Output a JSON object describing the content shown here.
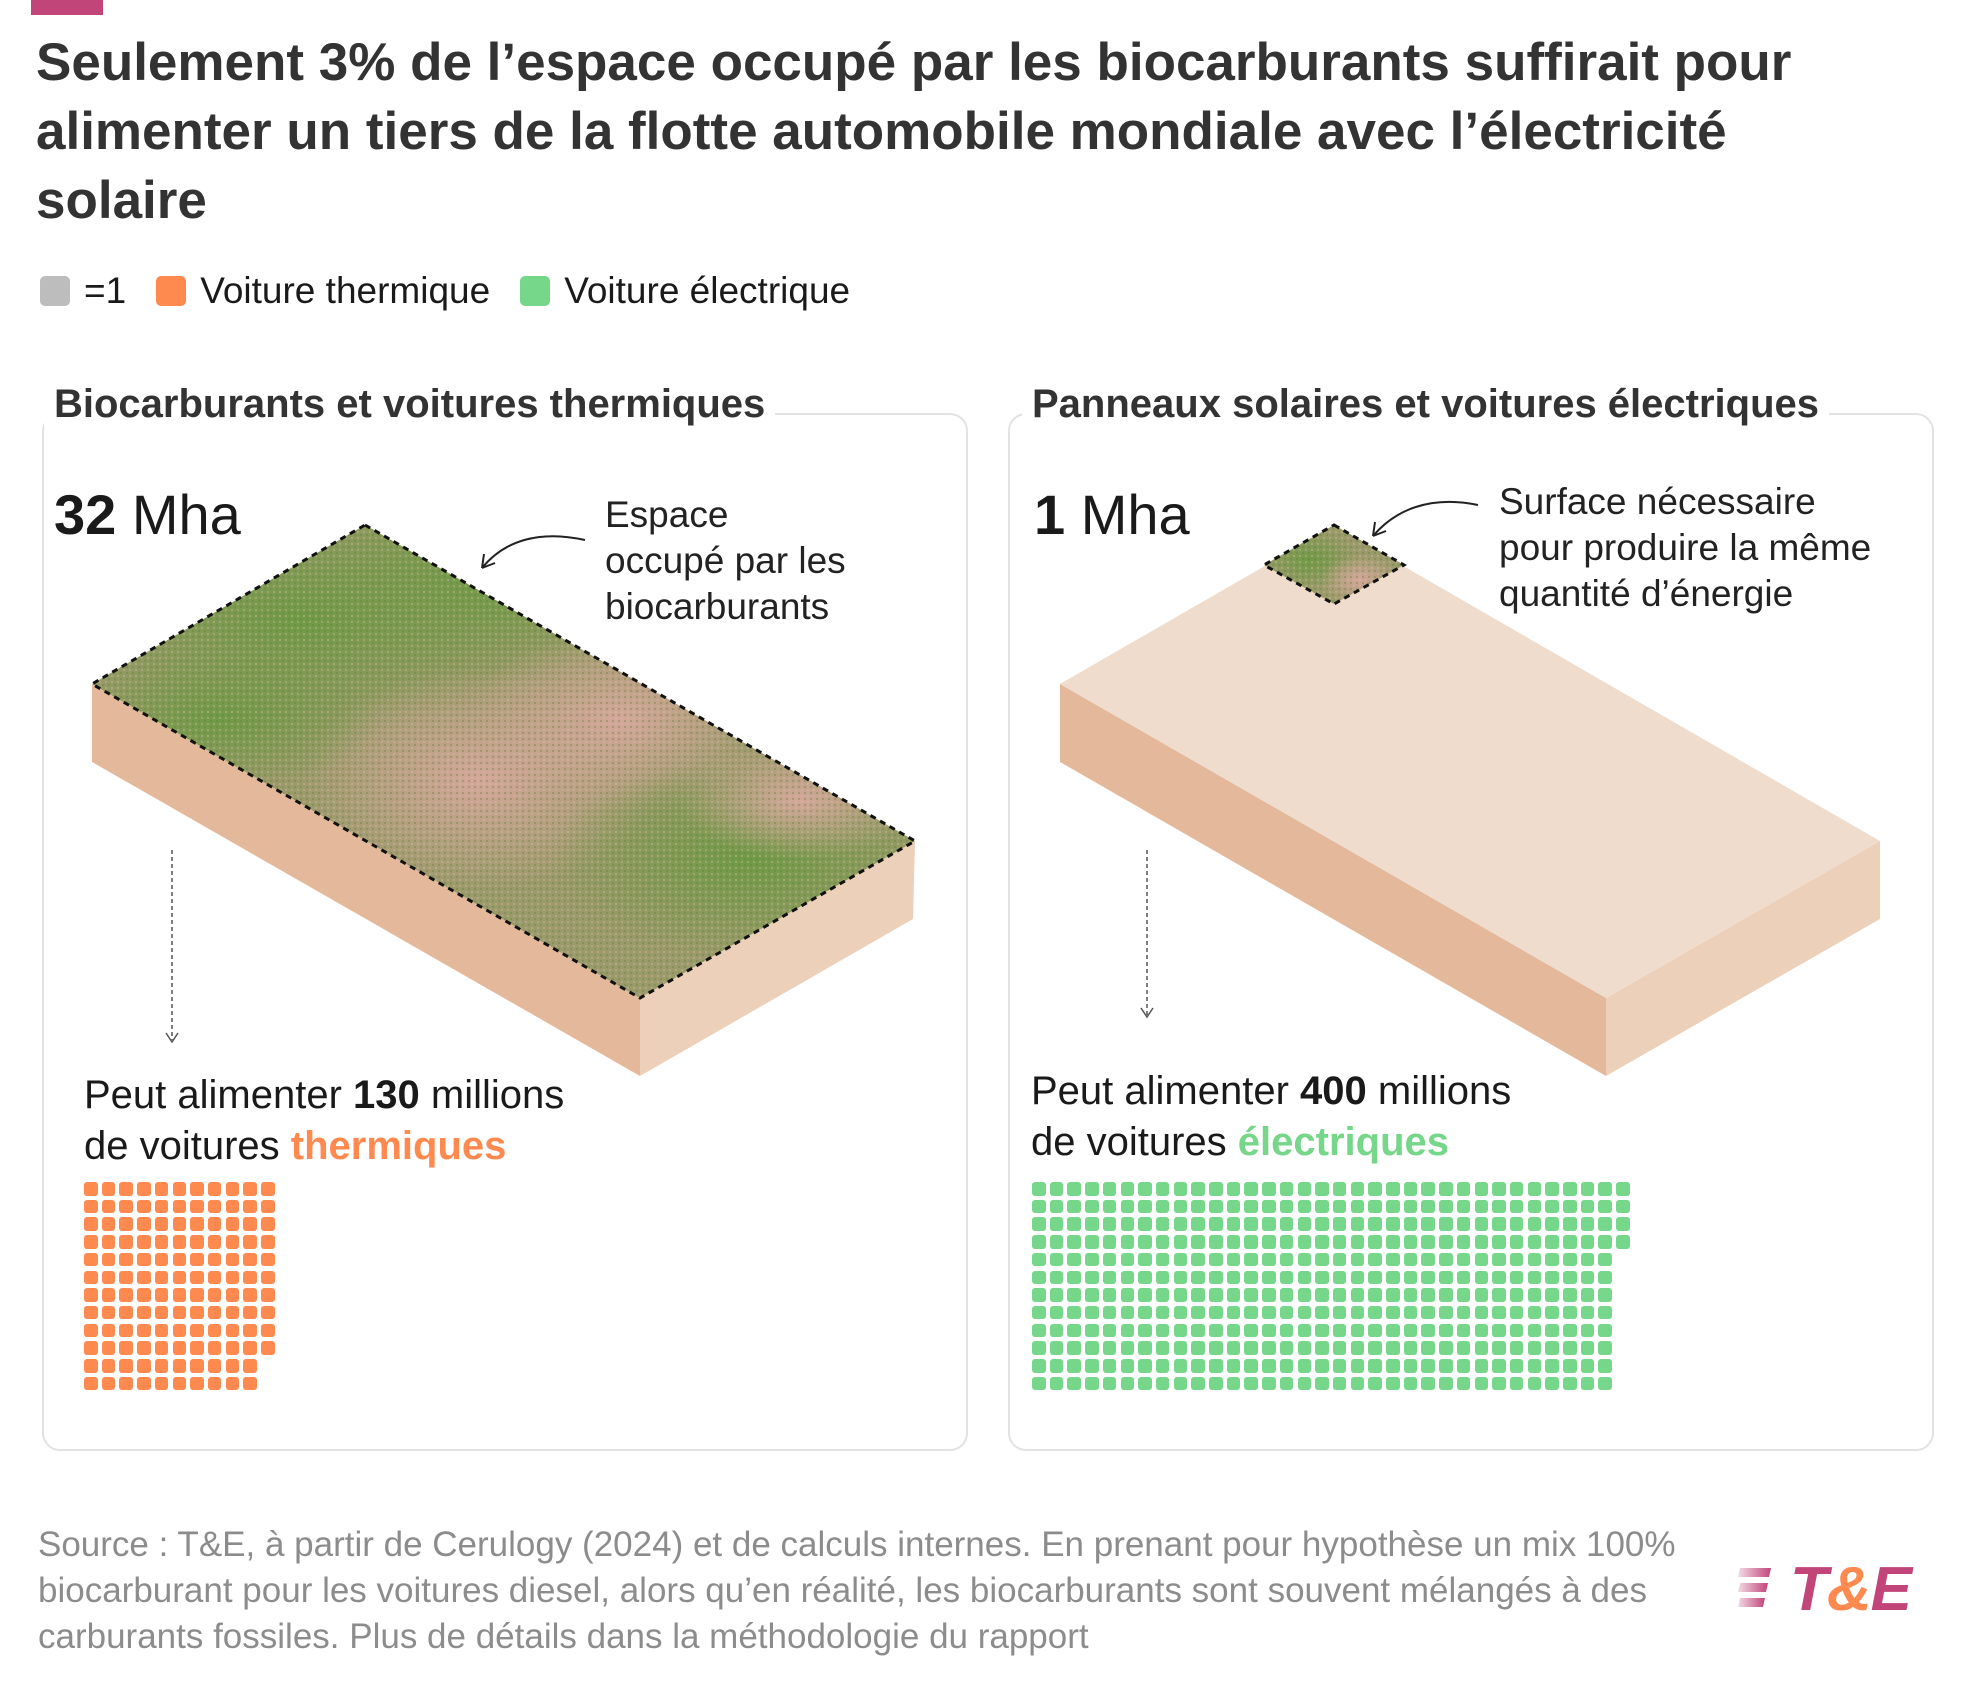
{
  "title": "Seulement 3% de l’espace occupé par les biocarburants suffirait pour alimenter un tiers de la flotte automobile mondiale avec l’électricité solaire",
  "legend": [
    {
      "label": "=1",
      "color": "#bdbdbd"
    },
    {
      "label": "Voiture thermique",
      "color": "#ff8a50"
    },
    {
      "label": "Voiture électrique",
      "color": "#76d68a"
    }
  ],
  "left_panel": {
    "title": "Biocarburants et voitures thermiques",
    "area_value": "32",
    "area_unit": " Mha",
    "annotation": [
      "Espace",
      "occupé par les",
      "biocarburants"
    ],
    "caption_prefix": "Peut alimenter ",
    "caption_number": "130",
    "caption_mid": " millions",
    "caption_line2": "de voitures ",
    "caption_highlight": "thermiques",
    "car_count": 130,
    "grid_rows": 12,
    "color": "#ff8a50"
  },
  "right_panel": {
    "title": "Panneaux solaires et voitures électriques",
    "area_value": "1",
    "area_unit": " Mha",
    "annotation": [
      "Surface nécessaire",
      "pour produire la même",
      "quantité d’énergie"
    ],
    "caption_prefix": "Peut alimenter ",
    "caption_number": "400",
    "caption_mid": " millions",
    "caption_line2": "de voitures ",
    "caption_highlight": "électriques",
    "car_count": 400,
    "grid_rows": 12,
    "color": "#76d68a"
  },
  "source": "Source : T&E, à partir de Cerulogy (2024) et de calculs internes. En prenant pour hypothèse un mix 100% biocarburant pour les voitures diesel, alors qu’en réalité, les biocarburants sont souvent mélangés à des carburants fossiles. Plus de détails dans la méthodologie du rapport",
  "logo": {
    "text": "T&E",
    "colors": {
      "primary": "#c2457a",
      "ampersand": "#ff8a50"
    }
  }
}
